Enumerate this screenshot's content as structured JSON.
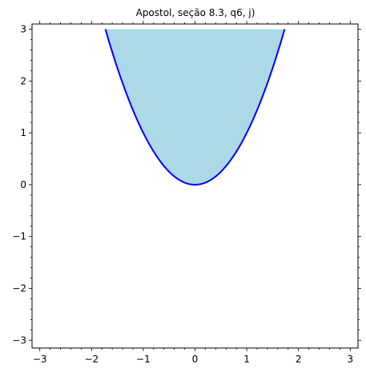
{
  "chart_data": {
    "type": "area",
    "title": "Apostol, seção 8.3, q6, j)",
    "xlabel": "",
    "ylabel": "",
    "xlim": [
      -3.15,
      3.15
    ],
    "ylim": [
      -3.15,
      3.1
    ],
    "x_ticks": [
      -3,
      -2,
      -1,
      0,
      1,
      2,
      3
    ],
    "x_tick_labels": [
      "−3",
      "−2",
      "−1",
      "0",
      "1",
      "2",
      "3"
    ],
    "y_ticks": [
      -3,
      -2,
      -1,
      0,
      1,
      2,
      3
    ],
    "y_tick_labels": [
      "−3",
      "−2",
      "−1",
      "0",
      "1",
      "2",
      "3"
    ],
    "grid": false,
    "series": [
      {
        "kind": "curve",
        "equation": "y = x^2",
        "x_range": [
          -1.732,
          1.732
        ],
        "color": "#0000ff"
      },
      {
        "kind": "fill",
        "region": "x^2 <= y <= 3",
        "color": "#add8e6"
      }
    ]
  }
}
